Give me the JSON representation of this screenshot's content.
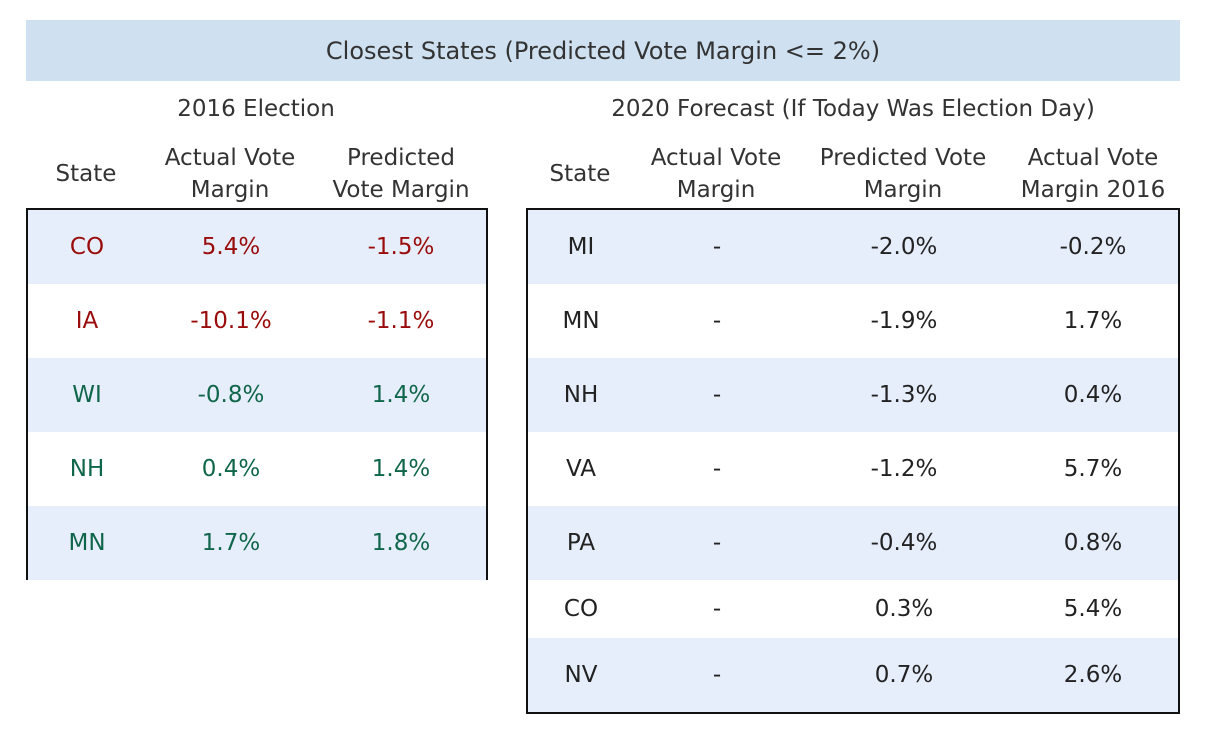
{
  "title": "Closest States (Predicted Vote Margin <= 2%)",
  "left": {
    "section_title": "2016 Election",
    "headers": {
      "state": "State",
      "actual": "Actual Vote\nMargin",
      "predicted": "Predicted\nVote Margin"
    },
    "rows": [
      {
        "state": "CO",
        "actual": "5.4%",
        "predicted": "-1.5%",
        "tone": "red"
      },
      {
        "state": "IA",
        "actual": "-10.1%",
        "predicted": "-1.1%",
        "tone": "red"
      },
      {
        "state": "WI",
        "actual": "-0.8%",
        "predicted": "1.4%",
        "tone": "green"
      },
      {
        "state": "NH",
        "actual": "0.4%",
        "predicted": "1.4%",
        "tone": "green"
      },
      {
        "state": "MN",
        "actual": "1.7%",
        "predicted": "1.8%",
        "tone": "green"
      }
    ]
  },
  "right": {
    "section_title": "2020 Forecast (If Today Was Election Day)",
    "headers": {
      "state": "State",
      "actual": "Actual Vote\nMargin",
      "predicted": "Predicted Vote\nMargin",
      "actual2016": "Actual Vote\nMargin 2016"
    },
    "rows": [
      {
        "state": "MI",
        "actual": "-",
        "predicted": "-2.0%",
        "actual2016": "-0.2%"
      },
      {
        "state": "MN",
        "actual": "-",
        "predicted": "-1.9%",
        "actual2016": "1.7%"
      },
      {
        "state": "NH",
        "actual": "-",
        "predicted": "-1.3%",
        "actual2016": "0.4%"
      },
      {
        "state": "VA",
        "actual": "-",
        "predicted": "-1.2%",
        "actual2016": "5.7%"
      },
      {
        "state": "PA",
        "actual": "-",
        "predicted": "-0.4%",
        "actual2016": "0.8%"
      },
      {
        "state": "CO",
        "actual": "-",
        "predicted": "0.3%",
        "actual2016": "5.4%"
      },
      {
        "state": "NV",
        "actual": "-",
        "predicted": "0.7%",
        "actual2016": "2.6%"
      }
    ]
  },
  "colors": {
    "banner": "#cfe0f0",
    "row_shade": "#e6edfb",
    "red": "#9a0b0b",
    "green": "#10664a"
  }
}
